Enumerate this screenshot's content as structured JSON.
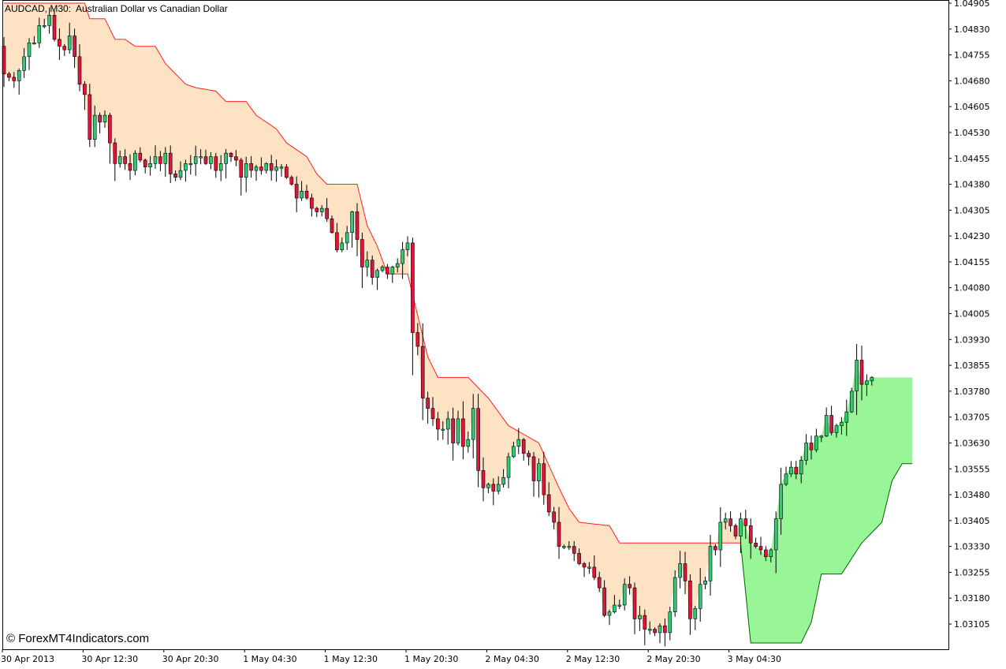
{
  "header": {
    "title": "AUDCAD, M30:  Australian Dollar vs Canadian Dollar"
  },
  "watermark": "© ForexMT4Indicators.com",
  "colors": {
    "bull_candle": "#2ecc71",
    "bear_candle": "#e0143c",
    "bearish_band": "#fde2c4",
    "bearish_line": "#ff2020",
    "bullish_band": "#98f598",
    "bullish_line": "#006400",
    "axis": "#000000"
  },
  "chart_data": {
    "type": "candlestick",
    "symbol": "AUDCAD",
    "timeframe": "M30",
    "ylim": [
      1.0305,
      1.0491
    ],
    "y_ticks": [
      "1.04905",
      "1.04830",
      "1.04755",
      "1.04680",
      "1.04605",
      "1.04530",
      "1.04455",
      "1.04380",
      "1.04305",
      "1.04230",
      "1.04155",
      "1.04080",
      "1.04005",
      "1.03930",
      "1.03855",
      "1.03780",
      "1.03705",
      "1.03630",
      "1.03555",
      "1.03480",
      "1.03405",
      "1.03330",
      "1.03255",
      "1.03180",
      "1.03105"
    ],
    "x_ticks": [
      "30 Apr 2013",
      "30 Apr 12:30",
      "30 Apr 20:30",
      "1 May 04:30",
      "1 May 12:30",
      "1 May 20:30",
      "2 May 04:30",
      "2 May 12:30",
      "2 May 20:30",
      "3 May 04:30"
    ],
    "bars_per_x_tick": 16,
    "closes": [
      1.047,
      1.0469,
      1.0468,
      1.0471,
      1.0475,
      1.0479,
      1.0479,
      1.0484,
      1.0484,
      1.0487,
      1.048,
      1.0478,
      1.0477,
      1.0481,
      1.0475,
      1.0467,
      1.0464,
      1.0451,
      1.0458,
      1.0456,
      1.0458,
      1.045,
      1.0444,
      1.0446,
      1.0444,
      1.0442,
      1.0447,
      1.0445,
      1.0443,
      1.0444,
      1.0446,
      1.0444,
      1.0447,
      1.0441,
      1.044,
      1.0442,
      1.0444,
      1.0444,
      1.0446,
      1.0446,
      1.0444,
      1.0446,
      1.0442,
      1.0444,
      1.0447,
      1.0446,
      1.0445,
      1.044,
      1.0444,
      1.0442,
      1.0443,
      1.0442,
      1.0444,
      1.0442,
      1.0443,
      1.0443,
      1.044,
      1.0438,
      1.0434,
      1.0436,
      1.0434,
      1.0431,
      1.043,
      1.0431,
      1.0428,
      1.0424,
      1.0419,
      1.0421,
      1.0424,
      1.043,
      1.0422,
      1.0414,
      1.0416,
      1.0411,
      1.0413,
      1.0414,
      1.0412,
      1.0414,
      1.0415,
      1.0419,
      1.0421,
      1.0395,
      1.0391,
      1.0376,
      1.0373,
      1.037,
      1.0367,
      1.0367,
      1.037,
      1.0363,
      1.037,
      1.0362,
      1.0364,
      1.0373,
      1.0355,
      1.035,
      1.0351,
      1.0349,
      1.0351,
      1.0353,
      1.0359,
      1.0362,
      1.0364,
      1.036,
      1.0359,
      1.0352,
      1.0357,
      1.0348,
      1.0343,
      1.034,
      1.0333,
      1.0333,
      1.0333,
      1.0331,
      1.0328,
      1.0327,
      1.0327,
      1.0324,
      1.0321,
      1.0313,
      1.0314,
      1.0316,
      1.0316,
      1.0322,
      1.0321,
      1.0312,
      1.0313,
      1.0309,
      1.0309,
      1.0308,
      1.031,
      1.0308,
      1.0314,
      1.0324,
      1.0328,
      1.0323,
      1.0312,
      1.0315,
      1.0322,
      1.0323,
      1.0333,
      1.0332,
      1.034,
      1.0341,
      1.0339,
      1.0336,
      1.0341,
      1.0339,
      1.0334,
      1.0333,
      1.0332,
      1.033,
      1.0332,
      1.0341,
      1.0351,
      1.0354,
      1.0356,
      1.0354,
      1.0358,
      1.0363,
      1.0361,
      1.0365,
      1.0365,
      1.0371,
      1.0366,
      1.0368,
      1.0369,
      1.0372,
      1.0378,
      1.0387,
      1.038,
      1.0381,
      1.0382
    ],
    "bands": [
      {
        "trend": "bearish",
        "from_bar": 0,
        "to_bar": 146,
        "curve": [
          [
            0,
            1.04905
          ],
          [
            16,
            1.04905
          ],
          [
            17,
            1.0486
          ],
          [
            20,
            1.0486
          ],
          [
            22,
            1.048
          ],
          [
            24,
            1.048
          ],
          [
            26,
            1.0478
          ],
          [
            30,
            1.0478
          ],
          [
            32,
            1.0473
          ],
          [
            34,
            1.047
          ],
          [
            36,
            1.0467
          ],
          [
            38,
            1.0466
          ],
          [
            42,
            1.0465
          ],
          [
            44,
            1.0462
          ],
          [
            48,
            1.0462
          ],
          [
            50,
            1.0458
          ],
          [
            54,
            1.0454
          ],
          [
            56,
            1.045
          ],
          [
            60,
            1.0446
          ],
          [
            62,
            1.0441
          ],
          [
            64,
            1.0438
          ],
          [
            70,
            1.0438
          ],
          [
            72,
            1.0426
          ],
          [
            74,
            1.042
          ],
          [
            76,
            1.0412
          ],
          [
            80,
            1.0412
          ],
          [
            82,
            1.04
          ],
          [
            84,
            1.0388
          ],
          [
            86,
            1.0382
          ],
          [
            92,
            1.0382
          ],
          [
            96,
            1.0376
          ],
          [
            100,
            1.0368
          ],
          [
            106,
            1.0363
          ],
          [
            110,
            1.035
          ],
          [
            112,
            1.0344
          ],
          [
            114,
            1.034
          ],
          [
            120,
            1.0339
          ],
          [
            122,
            1.0334
          ],
          [
            130,
            1.0334
          ],
          [
            136,
            1.0334
          ],
          [
            146,
            1.0334
          ]
        ]
      },
      {
        "trend": "bullish",
        "from_bar": 146,
        "to_bar": 180,
        "curve": [
          [
            146,
            1.0334
          ],
          [
            148,
            1.0305
          ],
          [
            158,
            1.0305
          ],
          [
            160,
            1.0311
          ],
          [
            162,
            1.0325
          ],
          [
            166,
            1.0325
          ],
          [
            170,
            1.0334
          ],
          [
            174,
            1.034
          ],
          [
            176,
            1.0352
          ],
          [
            178,
            1.0357
          ],
          [
            180,
            1.0357
          ]
        ]
      }
    ]
  }
}
